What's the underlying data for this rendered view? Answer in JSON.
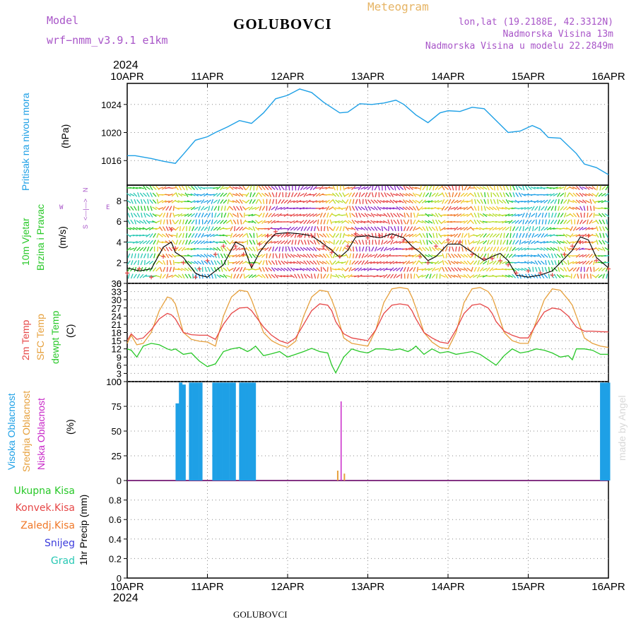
{
  "header": {
    "model_label": "Model",
    "model_name": "wrf−nmm_v3.9.1 e1km",
    "station": "GOLUBOVCI",
    "product": "Meteogram",
    "lonlat": "lon,lat (19.2188E, 42.3312N)",
    "elevation": "Nadmorska Visina 13m",
    "model_elevation": "Nadmorska Visina u modelu 22.2849m",
    "watermark": "made by Angel"
  },
  "footer": {
    "station": "GOLUBOVCI"
  },
  "colors": {
    "pressure": "#1ea0e6",
    "temp": "#e64646",
    "sfc": "#e6a03c",
    "dewpt": "#28c828",
    "cloud_high": "#1ea0e6",
    "cloud_mid": "#e6a03c",
    "cloud_low": "#c828c8",
    "grid": "#888888",
    "wind_speed": "#000000",
    "gust": "#e64646"
  },
  "chart_data": [
    {
      "type": "line",
      "panel": "pressure",
      "ylabel": [
        "Pritisak na nivou mora",
        "(hPa)"
      ],
      "ylim": [
        1012.5,
        1027
      ],
      "yticks": [
        "1016",
        "1020",
        "1024"
      ],
      "x_start": "10APR",
      "x_end": "16APR",
      "year": "2024",
      "xticks": [
        "10APR",
        "11APR",
        "12APR",
        "13APR",
        "14APR",
        "15APR",
        "16APR"
      ],
      "x_days": [
        0,
        0.1,
        0.3,
        0.45,
        0.6,
        0.7,
        0.85,
        1.0,
        1.1,
        1.25,
        1.4,
        1.55,
        1.7,
        1.85,
        2.0,
        2.15,
        2.3,
        2.45,
        2.65,
        2.75,
        2.9,
        3.05,
        3.2,
        3.35,
        3.45,
        3.6,
        3.75,
        3.9,
        4.0,
        4.15,
        4.3,
        4.45,
        4.6,
        4.75,
        4.9,
        5.05,
        5.15,
        5.25,
        5.4,
        5.6,
        5.7,
        5.85,
        6.0
      ],
      "series": [
        {
          "values": [
            1016.7,
            1016.7,
            1016.3,
            1015.9,
            1015.6,
            1016.9,
            1018.9,
            1019.4,
            1020.0,
            1020.8,
            1021.7,
            1021.3,
            1022.8,
            1024.8,
            1025.3,
            1026.2,
            1025.7,
            1024.3,
            1022.8,
            1022.9,
            1024.1,
            1024.0,
            1024.2,
            1024.6,
            1024.0,
            1022.5,
            1021.4,
            1022.8,
            1023.1,
            1023.0,
            1023.6,
            1023.4,
            1021.7,
            1020.0,
            1020.2,
            1021.0,
            1020.5,
            1019.3,
            1019.2,
            1017.0,
            1015.5,
            1015.0,
            1014.0
          ]
        }
      ]
    },
    {
      "type": "line",
      "panel": "wind",
      "ylabel": [
        "10m Vjetar",
        "Brzina i Pravac",
        "(m/s)"
      ],
      "legend": {
        "n": "N",
        "w": "W",
        "e": "E",
        "s": "S",
        "arrows": "<—|—>"
      },
      "ylim": [
        0,
        9.5
      ],
      "yticks": [
        "0",
        "2",
        "4",
        "6",
        "8"
      ],
      "x_days": [
        0,
        0.15,
        0.3,
        0.45,
        0.55,
        0.6,
        0.7,
        0.85,
        0.9,
        1.0,
        1.1,
        1.2,
        1.35,
        1.45,
        1.55,
        1.65,
        1.75,
        1.85,
        2.0,
        2.15,
        2.3,
        2.45,
        2.55,
        2.65,
        2.75,
        2.85,
        3.0,
        3.15,
        3.3,
        3.45,
        3.55,
        3.65,
        3.75,
        3.85,
        4.0,
        4.15,
        4.3,
        4.45,
        4.55,
        4.65,
        4.75,
        4.85,
        5.0,
        5.15,
        5.3,
        5.45,
        5.55,
        5.65,
        5.75,
        5.85,
        6.0
      ],
      "series": [
        {
          "name": "speed",
          "values": [
            1.5,
            1.2,
            1.4,
            3.5,
            4.0,
            3.0,
            2.5,
            1.0,
            0.8,
            0.6,
            1.2,
            1.8,
            4.0,
            3.6,
            1.5,
            3.0,
            4.0,
            4.8,
            4.9,
            4.8,
            4.6,
            3.8,
            3.2,
            2.5,
            3.2,
            4.5,
            4.6,
            4.4,
            4.8,
            4.4,
            3.6,
            3.0,
            2.2,
            2.6,
            3.8,
            3.8,
            3.0,
            2.2,
            2.6,
            2.9,
            2.2,
            0.8,
            0.6,
            0.8,
            1.2,
            2.4,
            3.2,
            4.5,
            4.2,
            2.5,
            1.5
          ]
        },
        {
          "name": "gust",
          "values": [
            1.0,
            1.4,
            0.6,
            2.6,
            5.2,
            3.4,
            2.0,
            0.6,
            1.4,
            2.2,
            2.8,
            3.6,
            3.6,
            2.8,
            1.8,
            3.8,
            4.6,
            5.0,
            4.8,
            4.6,
            4.6,
            3.6,
            3.0,
            2.6,
            3.6,
            4.8,
            4.4,
            4.6,
            4.4,
            4.2,
            3.4,
            2.6,
            2.0,
            3.6,
            4.2,
            4.0,
            2.8,
            2.4,
            2.4,
            2.2,
            1.8,
            1.0,
            1.2,
            1.0,
            0.8,
            2.8,
            3.6,
            4.0,
            4.6,
            2.2,
            1.4
          ]
        }
      ]
    },
    {
      "type": "line",
      "panel": "temperature",
      "ylabel": [
        "2m Temp",
        "SFC Temp",
        "dewpt Temp",
        "(C)"
      ],
      "ylim": [
        0,
        36
      ],
      "yticks": [
        "0",
        "3",
        "6",
        "9",
        "12",
        "15",
        "18",
        "21",
        "24",
        "27",
        "30",
        "33",
        "36"
      ],
      "x_days": [
        0,
        0.05,
        0.12,
        0.2,
        0.3,
        0.4,
        0.5,
        0.55,
        0.6,
        0.7,
        0.8,
        0.9,
        1.0,
        1.1,
        1.2,
        1.3,
        1.4,
        1.5,
        1.55,
        1.6,
        1.7,
        1.8,
        1.9,
        2.0,
        2.1,
        2.2,
        2.3,
        2.4,
        2.5,
        2.55,
        2.6,
        2.7,
        2.8,
        2.9,
        3.0,
        3.1,
        3.2,
        3.3,
        3.4,
        3.5,
        3.55,
        3.6,
        3.7,
        3.8,
        3.9,
        4.0,
        4.1,
        4.2,
        4.3,
        4.4,
        4.5,
        4.55,
        4.6,
        4.7,
        4.8,
        4.9,
        5.0,
        5.1,
        5.2,
        5.3,
        5.4,
        5.5,
        5.55,
        5.6,
        5.7,
        5.8,
        5.9,
        6.0
      ],
      "series": [
        {
          "name": "2m Temp",
          "values": [
            15,
            17.5,
            15.5,
            16,
            19,
            23,
            25,
            24.5,
            23,
            18,
            17.2,
            17,
            17,
            15.5,
            21,
            25,
            27,
            27.2,
            26,
            24,
            20,
            17,
            15,
            14,
            16,
            21,
            26,
            28.5,
            28,
            26,
            22,
            17.5,
            16,
            15.5,
            15,
            19,
            25,
            28,
            28.5,
            28,
            26,
            23,
            18,
            16,
            14.5,
            14,
            19,
            25,
            28,
            28.5,
            27,
            25,
            22,
            18.5,
            17,
            16,
            16,
            21,
            25.5,
            27,
            26.5,
            24,
            22,
            20,
            18.5,
            18.5,
            18.3,
            18.2
          ]
        },
        {
          "name": "SFC Temp",
          "values": [
            14,
            17,
            13.5,
            14,
            18,
            26,
            31,
            30.5,
            28.5,
            18,
            15.5,
            14.8,
            14.5,
            13,
            24,
            31,
            33.5,
            33,
            30,
            26,
            18,
            15,
            13.5,
            12.5,
            14.8,
            24,
            31,
            33.5,
            33,
            30,
            26,
            16,
            14,
            13.5,
            13,
            19,
            29,
            34,
            34.5,
            34,
            31,
            27,
            18,
            14.5,
            12.5,
            12,
            18,
            29,
            34,
            34.5,
            33,
            31,
            27,
            18,
            15,
            14,
            14,
            22,
            30,
            34,
            33.5,
            30,
            28,
            24,
            16,
            14,
            13,
            12.5
          ]
        },
        {
          "name": "dewpt Temp",
          "values": [
            12,
            11.5,
            9,
            13,
            14,
            13.5,
            12,
            11.5,
            12,
            10,
            10.5,
            7.5,
            5.5,
            6.5,
            11,
            12,
            12.5,
            11,
            11.8,
            13,
            9.5,
            10.2,
            11,
            9,
            10,
            11,
            12.2,
            11,
            10.5,
            6,
            3.2,
            9,
            12,
            11,
            10.5,
            12,
            12,
            11.5,
            12,
            11,
            11.8,
            13,
            10,
            12,
            10.5,
            11,
            10,
            10.5,
            11,
            10,
            8,
            7,
            6,
            9.5,
            12,
            10.5,
            11,
            12,
            11.5,
            10.5,
            9,
            9.5,
            8,
            12,
            12,
            11.5,
            10,
            10
          ]
        }
      ]
    },
    {
      "type": "bar",
      "panel": "cloud",
      "ylabel": [
        "Visoka Oblacnost",
        "Srednja Oblacnost",
        "Niska Oblacnost",
        "(%)"
      ],
      "ylim": [
        0,
        100
      ],
      "yticks": [
        "0",
        "25",
        "50",
        "75",
        "100"
      ],
      "series": [
        {
          "name": "Visoka Oblacnost",
          "x_days": [
            0.625,
            0.667,
            0.708,
            0.792,
            0.833,
            0.875,
            0.917,
            1.083,
            1.125,
            1.167,
            1.208,
            1.25,
            1.292,
            1.333,
            1.417,
            1.458,
            1.5,
            1.542,
            1.583,
            5.917,
            5.958,
            6.0
          ],
          "values": [
            78,
            99,
            97,
            99,
            99,
            99,
            99,
            99,
            99,
            99,
            99,
            99,
            99,
            99,
            99,
            99,
            99,
            99,
            99,
            99,
            99,
            99
          ]
        },
        {
          "name": "Srednja Oblacnost",
          "x_days": [
            2.625,
            2.708
          ],
          "values": [
            10,
            7
          ]
        },
        {
          "name": "Niska Oblacnost",
          "x_days": [
            2.667
          ],
          "values": [
            80
          ]
        }
      ]
    },
    {
      "type": "bar",
      "panel": "precip",
      "ylabel": [
        "1hr Precip (mm)"
      ],
      "legend": [
        "Ukupna Kisa",
        "Konvek.Kisa",
        "Zaledj.Kisa",
        "Snijeg",
        "Grad"
      ],
      "legend_colors": [
        "#28c828",
        "#e64646",
        "#f07828",
        "#3c3cdc",
        "#28c8b4"
      ],
      "ylim": [
        0,
        1
      ],
      "yticks": [
        "0",
        "0.2",
        "0.4",
        "0.6",
        "0.8"
      ],
      "series": [
        {
          "name": "Ukupna Kisa",
          "values": []
        }
      ],
      "year": "2024",
      "xticks": [
        "10APR",
        "11APR",
        "12APR",
        "13APR",
        "14APR",
        "15APR",
        "16APR"
      ]
    }
  ]
}
